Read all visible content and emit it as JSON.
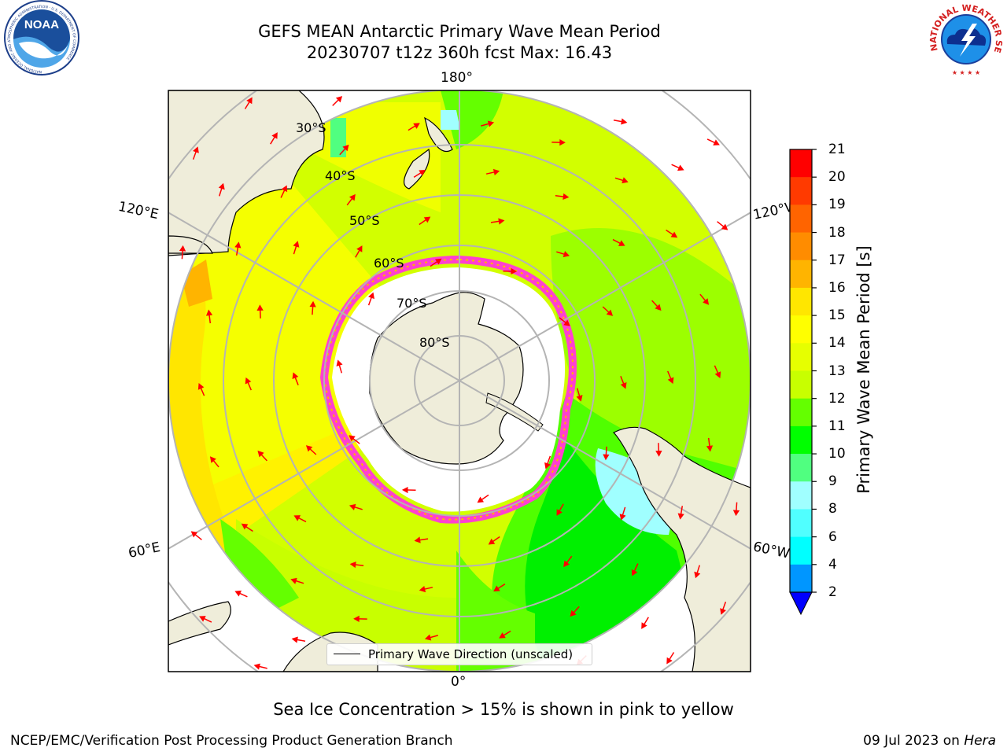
{
  "header": {
    "title_line1": "GEFS MEAN Antarctic Primary Wave Mean Period",
    "title_line2": "20230707 t12z 360h fcst   Max: 16.43"
  },
  "logos": {
    "left": {
      "name": "noaa-logo",
      "text": "NOAA",
      "ring_text": "NATIONAL OCEANIC AND ATMOSPHERIC ADMINISTRATION · U.S. DEPARTMENT OF COMMERCE"
    },
    "right": {
      "name": "nws-logo",
      "ring_text": "NATIONAL WEATHER SERVICE"
    }
  },
  "map": {
    "projection": "south-polar-stereographic",
    "longitude_labels": {
      "top": "180°",
      "bottom": "0°",
      "upper_left": "120°E",
      "upper_right": "120°W",
      "lower_left": "60°E",
      "lower_right": "60°W"
    },
    "latitude_labels": [
      "30°S",
      "40°S",
      "50°S",
      "60°S",
      "70°S",
      "80°S"
    ],
    "colors": {
      "land": "#efedda",
      "ice_interior": "#ffffff",
      "ice_edge": "#ff40d0",
      "arrow": "#ff0000",
      "grid": "#b4b4b4"
    }
  },
  "legend": {
    "label": "Primary Wave Direction (unscaled)"
  },
  "colorbar": {
    "label": "Primary Wave Mean Period [s]",
    "ticks": [
      "21",
      "20",
      "19",
      "18",
      "17",
      "16",
      "15",
      "14",
      "13",
      "12",
      "11",
      "10",
      "9",
      "8",
      "6",
      "4",
      "2"
    ],
    "colors": [
      "#ff0000",
      "#ff3a00",
      "#ff6400",
      "#ff8c00",
      "#ffb400",
      "#ffe600",
      "#ffff00",
      "#e6ff00",
      "#c8ff00",
      "#64ff00",
      "#00ff00",
      "#50ff80",
      "#a0ffff",
      "#50ffff",
      "#00ffff",
      "#0096ff",
      "#0066ff"
    ],
    "under_color": "#0000ff"
  },
  "chart_data": {
    "type": "heatmap",
    "title": "GEFS MEAN Antarctic Primary Wave Mean Period",
    "subtitle": "20230707 t12z 360h fcst   Max: 16.43",
    "variable": "Primary Wave Mean Period [s]",
    "max": 16.43,
    "color_levels": [
      2,
      4,
      6,
      8,
      9,
      10,
      11,
      12,
      13,
      14,
      15,
      16,
      17,
      18,
      19,
      20,
      21
    ]
  },
  "footer": {
    "note": "Sea Ice Concentration > 15% is shown in pink to yellow",
    "left": "NCEP/EMC/Verification Post Processing Product Generation Branch",
    "right_prefix": "09 Jul 2023 on ",
    "right_italic": "Hera"
  }
}
